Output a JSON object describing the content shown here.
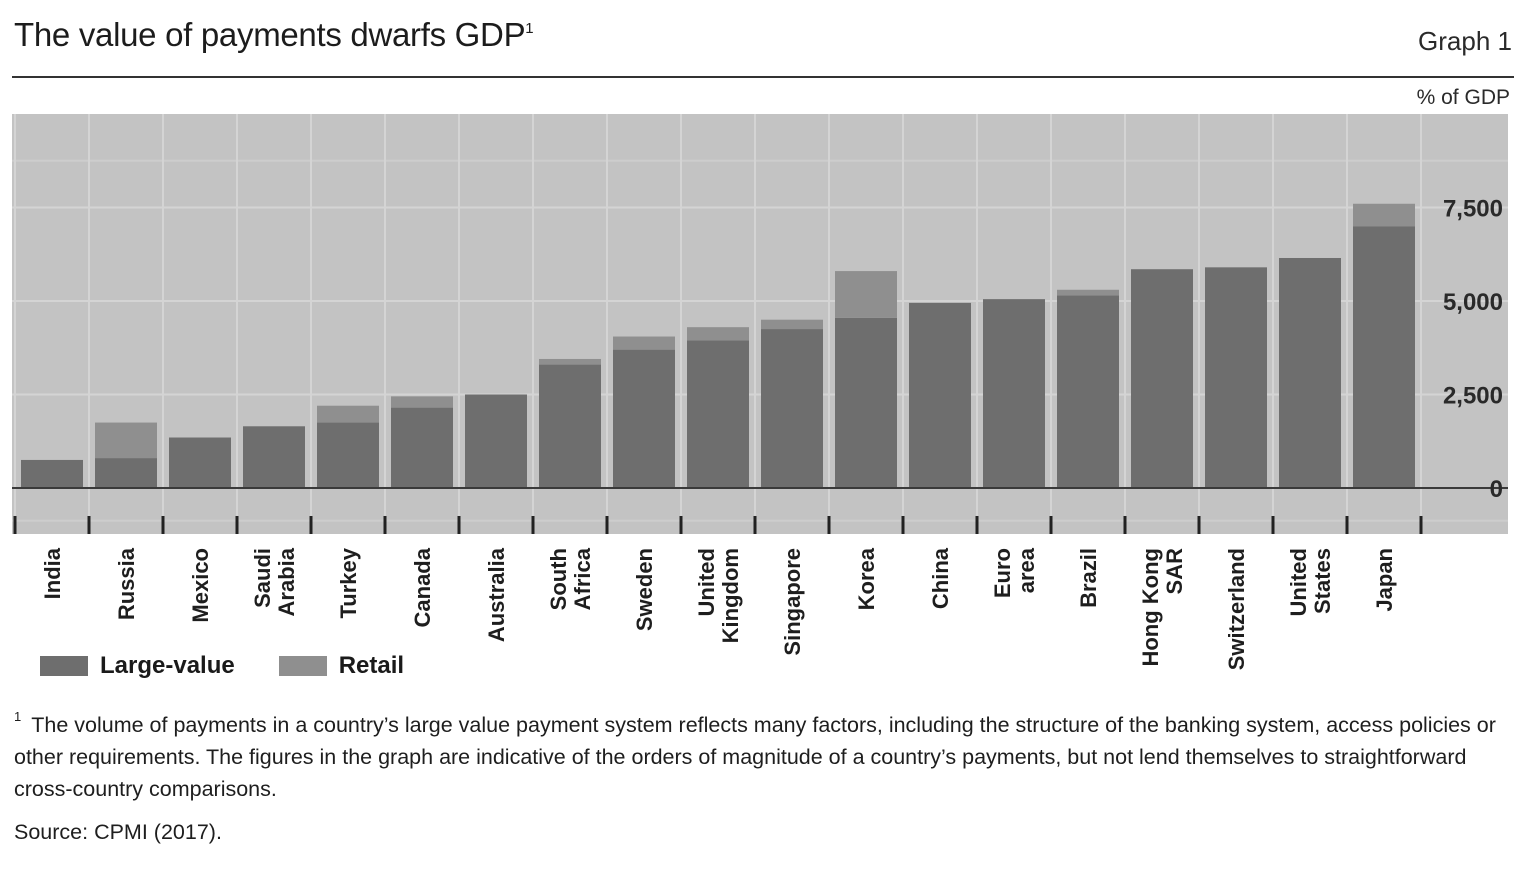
{
  "header": {
    "title": "The value of payments dwarfs GDP",
    "title_footnote_marker": "1",
    "graph_label": "Graph 1",
    "unit_label": "% of GDP"
  },
  "colors": {
    "large_value": "#6e6e6e",
    "retail": "#8f8f8f",
    "plot_background": "#c3c3c3",
    "gridline": "#d4d4d4"
  },
  "chart_data": {
    "type": "bar",
    "stacked": true,
    "title": "The value of payments dwarfs GDP",
    "ylabel": "% of GDP",
    "ylim": [
      -900,
      10000
    ],
    "yticks": [
      0,
      2500,
      5000,
      7500
    ],
    "ytick_labels": [
      "0",
      "2,500",
      "5,000",
      "7,500"
    ],
    "y_axis_side": "right",
    "grid": true,
    "legend_position": "bottom-left",
    "categories": [
      "India",
      "Russia",
      "Mexico",
      "Saudi Arabia",
      "Turkey",
      "Canada",
      "Australia",
      "South Africa",
      "Sweden",
      "United Kingdom",
      "Singapore",
      "Korea",
      "China",
      "Euro area",
      "Brazil",
      "Hong Kong SAR",
      "Switzerland",
      "United States",
      "Japan"
    ],
    "category_lines": [
      [
        "India"
      ],
      [
        "Russia"
      ],
      [
        "Mexico"
      ],
      [
        "Saudi",
        "Arabia"
      ],
      [
        "Turkey"
      ],
      [
        "Canada"
      ],
      [
        "Australia"
      ],
      [
        "South",
        "Africa"
      ],
      [
        "Sweden"
      ],
      [
        "United",
        "Kingdom"
      ],
      [
        "Singapore"
      ],
      [
        "Korea"
      ],
      [
        "China"
      ],
      [
        "Euro",
        "area"
      ],
      [
        "Brazil"
      ],
      [
        "Hong Kong",
        "SAR"
      ],
      [
        "Switzerland"
      ],
      [
        "United",
        "States"
      ],
      [
        "Japan"
      ]
    ],
    "series": [
      {
        "name": "Large-value",
        "values": [
          750,
          800,
          1350,
          1650,
          1750,
          2150,
          2500,
          3300,
          3700,
          3950,
          4250,
          4550,
          4950,
          5050,
          5150,
          5850,
          5900,
          6150,
          7000
        ]
      },
      {
        "name": "Retail",
        "values": [
          0,
          950,
          0,
          0,
          450,
          300,
          0,
          150,
          350,
          350,
          250,
          1250,
          0,
          0,
          150,
          0,
          0,
          0,
          600
        ]
      }
    ]
  },
  "legend": {
    "large_value_label": "Large-value",
    "retail_label": "Retail"
  },
  "footnote": {
    "marker": "1",
    "text": "The volume of payments in a country’s large value payment system reflects many factors, including the structure of the banking system, access policies or other requirements. The figures in the graph are indicative of the orders of magnitude of a country’s payments, but not lend themselves to straightforward cross-country comparisons."
  },
  "source": "Source: CPMI (2017)."
}
